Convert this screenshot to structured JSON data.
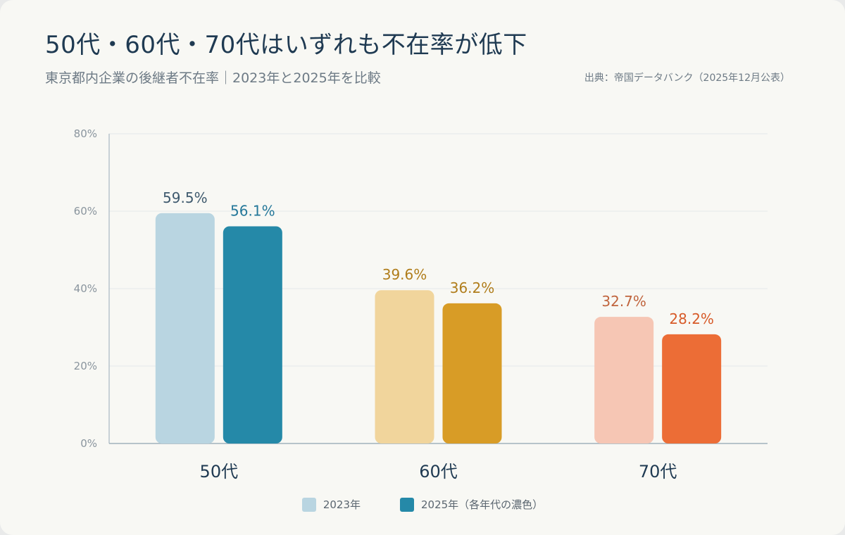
{
  "title": "50代・60代・70代はいずれも不在率が低下",
  "subtitle": "東京都内企業の後継者不在率｜2023年と2025年を比較",
  "source": "出典：帝国データバンク（2025年12月公表）",
  "legend": {
    "item_2023": "2023年",
    "item_2025": "2025年（各年代の濃色）",
    "swatch_2023_color": "#b9d5e1",
    "swatch_2025_color": "#2589a8"
  },
  "chart_data": {
    "type": "bar",
    "categories": [
      "50代",
      "60代",
      "70代"
    ],
    "series": [
      {
        "name": "2023年",
        "values": [
          59.5,
          39.6,
          32.7
        ],
        "labels": [
          "59.5%",
          "39.6%",
          "32.7%"
        ]
      },
      {
        "name": "2025年（各年代の濃色）",
        "values": [
          56.1,
          36.2,
          28.2
        ],
        "labels": [
          "56.1%",
          "36.2%",
          "28.2%"
        ]
      }
    ],
    "ylim": [
      0,
      80
    ],
    "yticks": [
      0,
      20,
      40,
      60,
      80
    ],
    "ytick_labels": [
      "0%",
      "20%",
      "40%",
      "60%",
      "80%"
    ],
    "grid": true,
    "legend_position": "bottom-center",
    "colors": {
      "light": [
        "#b9d5e1",
        "#f1d59c",
        "#f6c6b4"
      ],
      "dark": [
        "#2589a8",
        "#d89c26",
        "#ec6d36"
      ],
      "label_light": [
        "#3f5a6e",
        "#b07d1b",
        "#c0643d"
      ],
      "label_dark": [
        "#25789a",
        "#b07d1b",
        "#d75a28"
      ]
    }
  }
}
